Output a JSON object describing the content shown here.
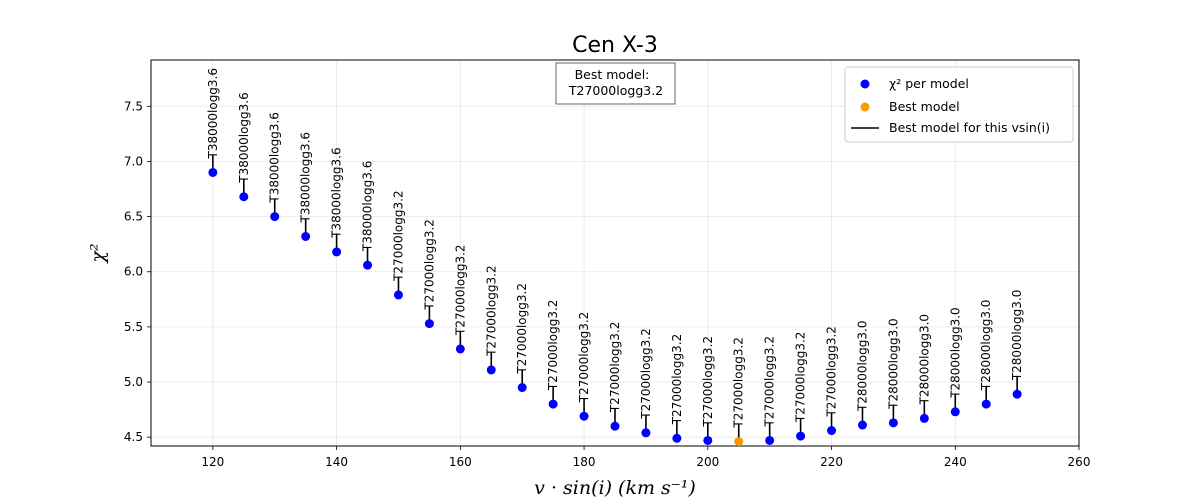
{
  "chart_data": {
    "type": "scatter",
    "title": "Cen X-3",
    "xlabel": "v · sin(i) (km s⁻¹)",
    "ylabel": "χ²",
    "xlim": [
      110,
      260
    ],
    "ylim": [
      4.42,
      7.92
    ],
    "xticks": [
      120,
      140,
      160,
      180,
      200,
      220,
      240,
      260
    ],
    "yticks": [
      4.5,
      5.0,
      5.5,
      6.0,
      6.5,
      7.0,
      7.5
    ],
    "grid": true,
    "legend_position": "top-right",
    "series": [
      {
        "name": "χ² per model",
        "color": "#0000ff",
        "x": [
          120,
          125,
          130,
          135,
          140,
          145,
          150,
          155,
          160,
          165,
          170,
          175,
          180,
          185,
          190,
          195,
          200,
          210,
          215,
          220,
          225,
          230,
          235,
          240,
          245,
          250
        ],
        "y": [
          6.9,
          6.68,
          6.5,
          6.32,
          6.18,
          6.06,
          5.79,
          5.53,
          5.3,
          5.11,
          4.95,
          4.8,
          4.69,
          4.6,
          4.54,
          4.49,
          4.47,
          4.47,
          4.51,
          4.56,
          4.61,
          4.63,
          4.67,
          4.73,
          4.8,
          4.89
        ],
        "labels": [
          "T38000logg3.6",
          "T38000logg3.6",
          "T38000logg3.6",
          "T38000logg3.6",
          "T38000logg3.6",
          "T38000logg3.6",
          "T27000logg3.2",
          "T27000logg3.2",
          "T27000logg3.2",
          "T27000logg3.2",
          "T27000logg3.2",
          "T27000logg3.2",
          "T27000logg3.2",
          "T27000logg3.2",
          "T27000logg3.2",
          "T27000logg3.2",
          "T27000logg3.2",
          "T27000logg3.2",
          "T27000logg3.2",
          "T27000logg3.2",
          "T28000logg3.0",
          "T28000logg3.0",
          "T28000logg3.0",
          "T28000logg3.0",
          "T28000logg3.0",
          "T28000logg3.0"
        ]
      },
      {
        "name": "Best model",
        "color": "#ff9900",
        "x": [
          205
        ],
        "y": [
          4.46
        ],
        "labels": [
          "T27000logg3.2"
        ]
      }
    ],
    "legend": [
      {
        "marker": "dot",
        "color": "#0000ff",
        "text": "χ² per model"
      },
      {
        "marker": "dot",
        "color": "#ff9900",
        "text": "Best model"
      },
      {
        "marker": "line",
        "color": "#000000",
        "text": "Best model for this vsin(i)"
      }
    ],
    "annotation": {
      "lines": [
        "Best model:",
        "T27000logg3.2"
      ]
    }
  }
}
